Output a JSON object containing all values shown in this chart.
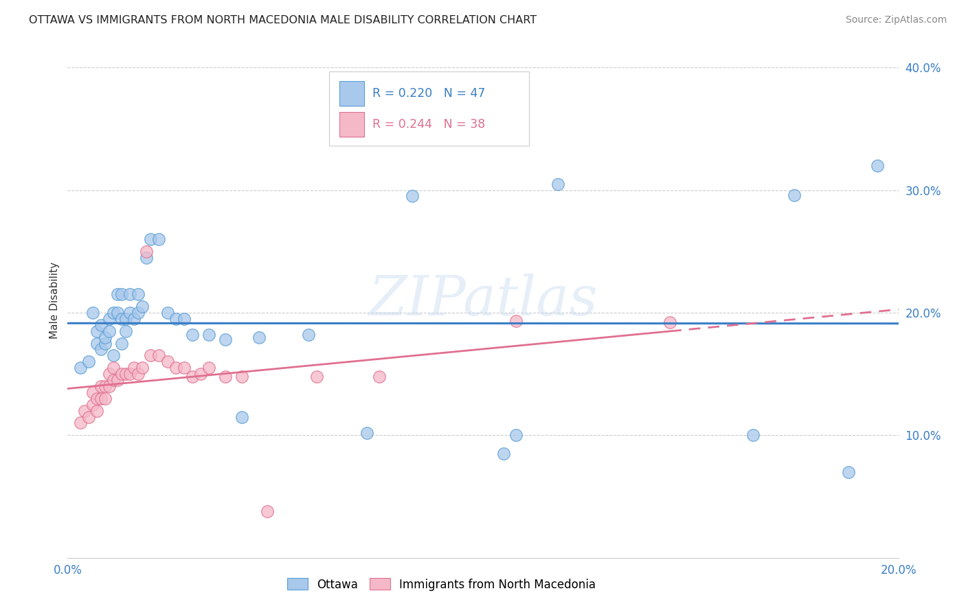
{
  "title": "OTTAWA VS IMMIGRANTS FROM NORTH MACEDONIA MALE DISABILITY CORRELATION CHART",
  "source": "Source: ZipAtlas.com",
  "ylabel": "Male Disability",
  "xlim": [
    0.0,
    0.2
  ],
  "ylim": [
    0.0,
    0.42
  ],
  "ytick_labels": [
    "",
    "10.0%",
    "20.0%",
    "30.0%",
    "40.0%"
  ],
  "ytick_values": [
    0.0,
    0.1,
    0.2,
    0.3,
    0.4
  ],
  "xtick_labels": [
    "0.0%",
    "",
    "",
    "",
    "",
    "20.0%"
  ],
  "xtick_values": [
    0.0,
    0.04,
    0.08,
    0.12,
    0.16,
    0.2
  ],
  "ottawa_color": "#A8C8EC",
  "ottawa_edge_color": "#5A9FD4",
  "nmacedonia_color": "#F5B8C8",
  "nmacedonia_edge_color": "#E07090",
  "trend_blue": "#3A7EC6",
  "trend_pink": "#E07090",
  "watermark": "ZIPatlas",
  "ottawa_x": [
    0.003,
    0.005,
    0.006,
    0.007,
    0.007,
    0.008,
    0.008,
    0.009,
    0.009,
    0.01,
    0.01,
    0.011,
    0.011,
    0.012,
    0.012,
    0.013,
    0.013,
    0.013,
    0.014,
    0.014,
    0.015,
    0.015,
    0.016,
    0.017,
    0.017,
    0.018,
    0.019,
    0.02,
    0.022,
    0.024,
    0.026,
    0.028,
    0.03,
    0.034,
    0.038,
    0.042,
    0.046,
    0.058,
    0.072,
    0.083,
    0.105,
    0.108,
    0.118,
    0.165,
    0.175,
    0.188,
    0.195
  ],
  "ottawa_y": [
    0.155,
    0.16,
    0.2,
    0.175,
    0.185,
    0.17,
    0.19,
    0.175,
    0.18,
    0.185,
    0.195,
    0.165,
    0.2,
    0.2,
    0.215,
    0.175,
    0.195,
    0.215,
    0.185,
    0.195,
    0.2,
    0.215,
    0.195,
    0.2,
    0.215,
    0.205,
    0.245,
    0.26,
    0.26,
    0.2,
    0.195,
    0.195,
    0.182,
    0.182,
    0.178,
    0.115,
    0.18,
    0.182,
    0.102,
    0.295,
    0.085,
    0.1,
    0.305,
    0.1,
    0.296,
    0.07,
    0.32
  ],
  "nmacedonia_x": [
    0.003,
    0.004,
    0.005,
    0.006,
    0.006,
    0.007,
    0.007,
    0.008,
    0.008,
    0.009,
    0.009,
    0.01,
    0.01,
    0.011,
    0.011,
    0.012,
    0.013,
    0.014,
    0.015,
    0.016,
    0.017,
    0.018,
    0.019,
    0.02,
    0.022,
    0.024,
    0.026,
    0.028,
    0.03,
    0.032,
    0.034,
    0.038,
    0.042,
    0.048,
    0.06,
    0.075,
    0.108,
    0.145
  ],
  "nmacedonia_y": [
    0.11,
    0.12,
    0.115,
    0.125,
    0.135,
    0.12,
    0.13,
    0.13,
    0.14,
    0.13,
    0.14,
    0.14,
    0.15,
    0.145,
    0.155,
    0.145,
    0.15,
    0.15,
    0.15,
    0.155,
    0.15,
    0.155,
    0.25,
    0.165,
    0.165,
    0.16,
    0.155,
    0.155,
    0.148,
    0.15,
    0.155,
    0.148,
    0.148,
    0.038,
    0.148,
    0.148,
    0.193,
    0.192
  ]
}
